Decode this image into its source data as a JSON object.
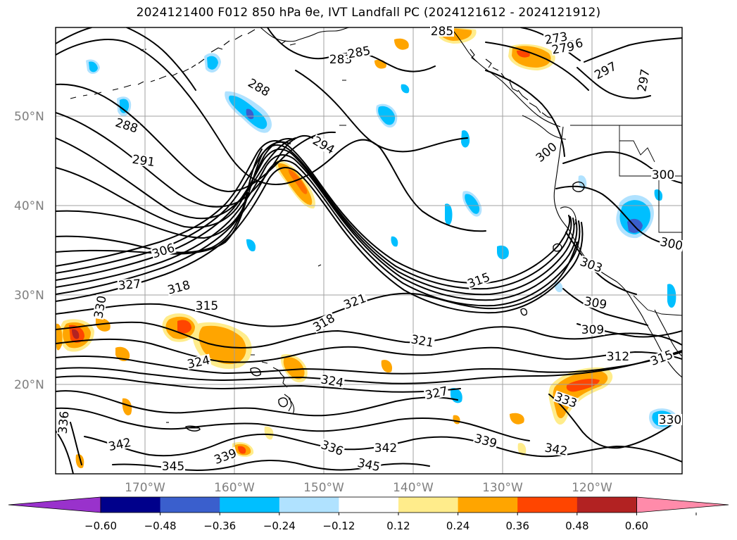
{
  "title": "2024121400 F012 850 hPa θe, IVT Landfall PC (2024121612 - 2024121912)",
  "axes": {
    "lat_labels": [
      "50°N",
      "40°N",
      "30°N",
      "20°N"
    ],
    "lon_labels": [
      "170°W",
      "160°W",
      "150°W",
      "140°W",
      "130°W",
      "120°W"
    ]
  },
  "contour_labels": [
    "273",
    "276",
    "279",
    "283",
    "285",
    "285",
    "288",
    "288",
    "291",
    "294",
    "297",
    "297",
    "300",
    "300",
    "300",
    "303",
    "306",
    "309",
    "309",
    "312",
    "315",
    "315",
    "315",
    "318",
    "318",
    "321",
    "321",
    "324",
    "324",
    "327",
    "327",
    "330",
    "330",
    "333",
    "336",
    "336",
    "339",
    "339",
    "342",
    "342",
    "342",
    "345",
    "345"
  ],
  "colorbar": {
    "ticks": [
      "−0.60",
      "−0.48",
      "−0.36",
      "−0.24",
      "−0.12",
      "0.12",
      "0.24",
      "0.36",
      "0.48",
      "0.60"
    ],
    "colors": [
      "#9932CC",
      "#00008B",
      "#3A5FCD",
      "#00BFFF",
      "#B0E2FF",
      "#FFFFFF",
      "#FFEC8B",
      "#FFA500",
      "#FF4500",
      "#B22222",
      "#FF8BAA"
    ]
  }
}
